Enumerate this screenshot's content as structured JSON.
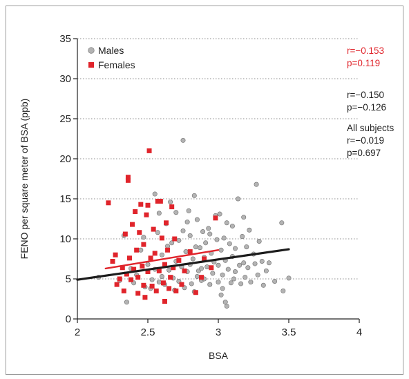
{
  "chart_data": {
    "type": "scatter",
    "xlabel": "BSA",
    "ylabel": "FENO per square meter of BSA (ppb)",
    "xlim": [
      2,
      4
    ],
    "ylim": [
      0,
      35
    ],
    "xticks": [
      "2",
      "2.5",
      "3",
      "3.5",
      "4"
    ],
    "yticks": [
      "0",
      "5",
      "10",
      "15",
      "20",
      "25",
      "30",
      "35"
    ],
    "grid": "horizontal dotted",
    "legend": {
      "placement": "top-left",
      "items": [
        {
          "label": "Males",
          "marker": "circle",
          "color": "#b3b3b3"
        },
        {
          "label": "Females",
          "marker": "square",
          "color": "#e0242b"
        }
      ]
    },
    "annotations": {
      "females": {
        "r": "r=−0.153",
        "p": "p=0.119",
        "color": "#e0242b"
      },
      "males": {
        "r": "r=−0.150",
        "p": "p=−0.126",
        "color": "#222222"
      },
      "all": {
        "title": "All subjects",
        "r": "r=−0.019",
        "p": "p=0.697",
        "color": "#222222"
      }
    },
    "series": [
      {
        "name": "Males",
        "color": "#b3b3b3",
        "points": [
          [
            2.15,
            5.2
          ],
          [
            2.3,
            4.8
          ],
          [
            2.33,
            10.4
          ],
          [
            2.35,
            2.1
          ],
          [
            2.38,
            6.3
          ],
          [
            2.4,
            4.5
          ],
          [
            2.42,
            5.5
          ],
          [
            2.45,
            8.6
          ],
          [
            2.47,
            10.2
          ],
          [
            2.48,
            4.0
          ],
          [
            2.5,
            6.8
          ],
          [
            2.52,
            3.8
          ],
          [
            2.53,
            4.9
          ],
          [
            2.55,
            15.6
          ],
          [
            2.55,
            6.2
          ],
          [
            2.57,
            10.8
          ],
          [
            2.58,
            13.2
          ],
          [
            2.6,
            5.3
          ],
          [
            2.6,
            8.0
          ],
          [
            2.62,
            4.3
          ],
          [
            2.63,
            11.9
          ],
          [
            2.65,
            6.1
          ],
          [
            2.66,
            14.6
          ],
          [
            2.67,
            9.5
          ],
          [
            2.68,
            5.1
          ],
          [
            2.7,
            7.2
          ],
          [
            2.7,
            13.3
          ],
          [
            2.72,
            4.7
          ],
          [
            2.72,
            9.8
          ],
          [
            2.74,
            6.5
          ],
          [
            2.75,
            22.3
          ],
          [
            2.75,
            11.0
          ],
          [
            2.76,
            3.9
          ],
          [
            2.77,
            8.4
          ],
          [
            2.78,
            5.9
          ],
          [
            2.79,
            13.5
          ],
          [
            2.8,
            6.8
          ],
          [
            2.8,
            10.4
          ],
          [
            2.81,
            4.4
          ],
          [
            2.82,
            7.5
          ],
          [
            2.83,
            15.4
          ],
          [
            2.84,
            9.0
          ],
          [
            2.85,
            5.3
          ],
          [
            2.85,
            12.4
          ],
          [
            2.86,
            6.0
          ],
          [
            2.87,
            8.9
          ],
          [
            2.88,
            4.8
          ],
          [
            2.89,
            10.9
          ],
          [
            2.9,
            7.7
          ],
          [
            2.9,
            5.0
          ],
          [
            2.91,
            9.5
          ],
          [
            2.92,
            6.5
          ],
          [
            2.93,
            11.3
          ],
          [
            2.94,
            4.3
          ],
          [
            2.95,
            8.2
          ],
          [
            2.96,
            5.7
          ],
          [
            2.97,
            7.1
          ],
          [
            2.98,
            12.9
          ],
          [
            2.99,
            9.9
          ],
          [
            3.0,
            4.6
          ],
          [
            3.0,
            6.7
          ],
          [
            3.01,
            13.1
          ],
          [
            3.02,
            8.6
          ],
          [
            3.02,
            3.0
          ],
          [
            3.03,
            5.5
          ],
          [
            3.04,
            10.1
          ],
          [
            3.05,
            7.3
          ],
          [
            3.05,
            2.1
          ],
          [
            3.06,
            1.6
          ],
          [
            3.06,
            12.0
          ],
          [
            3.07,
            6.2
          ],
          [
            3.08,
            9.4
          ],
          [
            3.09,
            4.5
          ],
          [
            3.1,
            7.8
          ],
          [
            3.1,
            11.6
          ],
          [
            3.12,
            5.9
          ],
          [
            3.12,
            8.8
          ],
          [
            3.14,
            15.0
          ],
          [
            3.15,
            6.7
          ],
          [
            3.16,
            4.4
          ],
          [
            3.17,
            10.3
          ],
          [
            3.18,
            7.0
          ],
          [
            3.19,
            5.2
          ],
          [
            3.2,
            9.0
          ],
          [
            3.21,
            6.4
          ],
          [
            3.22,
            11.1
          ],
          [
            3.23,
            4.6
          ],
          [
            3.25,
            8.1
          ],
          [
            3.26,
            6.9
          ],
          [
            3.27,
            16.8
          ],
          [
            3.28,
            5.5
          ],
          [
            3.29,
            9.7
          ],
          [
            3.31,
            7.2
          ],
          [
            3.32,
            4.2
          ],
          [
            3.34,
            6.0
          ],
          [
            3.36,
            7.0
          ],
          [
            3.4,
            4.7
          ],
          [
            3.45,
            12.0
          ],
          [
            3.46,
            3.5
          ],
          [
            3.5,
            5.1
          ],
          [
            2.58,
            4.6
          ],
          [
            2.64,
            9.1
          ],
          [
            2.69,
            3.6
          ],
          [
            2.78,
            12.1
          ],
          [
            2.83,
            3.4
          ],
          [
            2.88,
            6.3
          ],
          [
            2.94,
            10.6
          ],
          [
            3.03,
            3.8
          ],
          [
            3.11,
            5.0
          ],
          [
            3.18,
            12.7
          ]
        ]
      },
      {
        "name": "Females",
        "color": "#e0242b",
        "points": [
          [
            2.22,
            14.5
          ],
          [
            2.25,
            7.2
          ],
          [
            2.27,
            8.0
          ],
          [
            2.28,
            4.3
          ],
          [
            2.3,
            5.0
          ],
          [
            2.32,
            6.4
          ],
          [
            2.33,
            3.5
          ],
          [
            2.34,
            10.6
          ],
          [
            2.35,
            5.6
          ],
          [
            2.36,
            17.3
          ],
          [
            2.36,
            17.7
          ],
          [
            2.37,
            7.6
          ],
          [
            2.38,
            4.9
          ],
          [
            2.39,
            11.8
          ],
          [
            2.4,
            6.2
          ],
          [
            2.41,
            13.4
          ],
          [
            2.42,
            8.6
          ],
          [
            2.43,
            3.2
          ],
          [
            2.43,
            5.2
          ],
          [
            2.44,
            10.8
          ],
          [
            2.45,
            14.3
          ],
          [
            2.46,
            6.6
          ],
          [
            2.47,
            4.2
          ],
          [
            2.47,
            9.3
          ],
          [
            2.48,
            2.7
          ],
          [
            2.49,
            13.0
          ],
          [
            2.5,
            14.2
          ],
          [
            2.5,
            5.9
          ],
          [
            2.51,
            21.0
          ],
          [
            2.52,
            7.6
          ],
          [
            2.53,
            4.1
          ],
          [
            2.54,
            11.2
          ],
          [
            2.55,
            8.2
          ],
          [
            2.56,
            3.5
          ],
          [
            2.57,
            14.7
          ],
          [
            2.58,
            6.0
          ],
          [
            2.59,
            14.7
          ],
          [
            2.6,
            10.1
          ],
          [
            2.61,
            4.5
          ],
          [
            2.62,
            2.2
          ],
          [
            2.62,
            6.8
          ],
          [
            2.63,
            12.0
          ],
          [
            2.64,
            8.6
          ],
          [
            2.65,
            3.8
          ],
          [
            2.66,
            5.2
          ],
          [
            2.67,
            14.0
          ],
          [
            2.68,
            6.4
          ],
          [
            2.69,
            10.0
          ],
          [
            2.7,
            3.5
          ],
          [
            2.72,
            7.3
          ],
          [
            2.74,
            4.3
          ],
          [
            2.76,
            6.0
          ],
          [
            2.8,
            8.4
          ],
          [
            2.84,
            3.3
          ],
          [
            2.88,
            5.2
          ],
          [
            2.9,
            7.5
          ],
          [
            2.95,
            6.4
          ],
          [
            2.98,
            12.6
          ]
        ]
      }
    ],
    "trendlines": [
      {
        "name": "Females",
        "color": "#e0242b",
        "from": [
          2.2,
          6.3
        ],
        "to": [
          3.0,
          8.6
        ]
      },
      {
        "name": "All",
        "color": "#1c1c1c",
        "from": [
          2.0,
          4.9
        ],
        "to": [
          3.5,
          8.7
        ]
      }
    ]
  }
}
